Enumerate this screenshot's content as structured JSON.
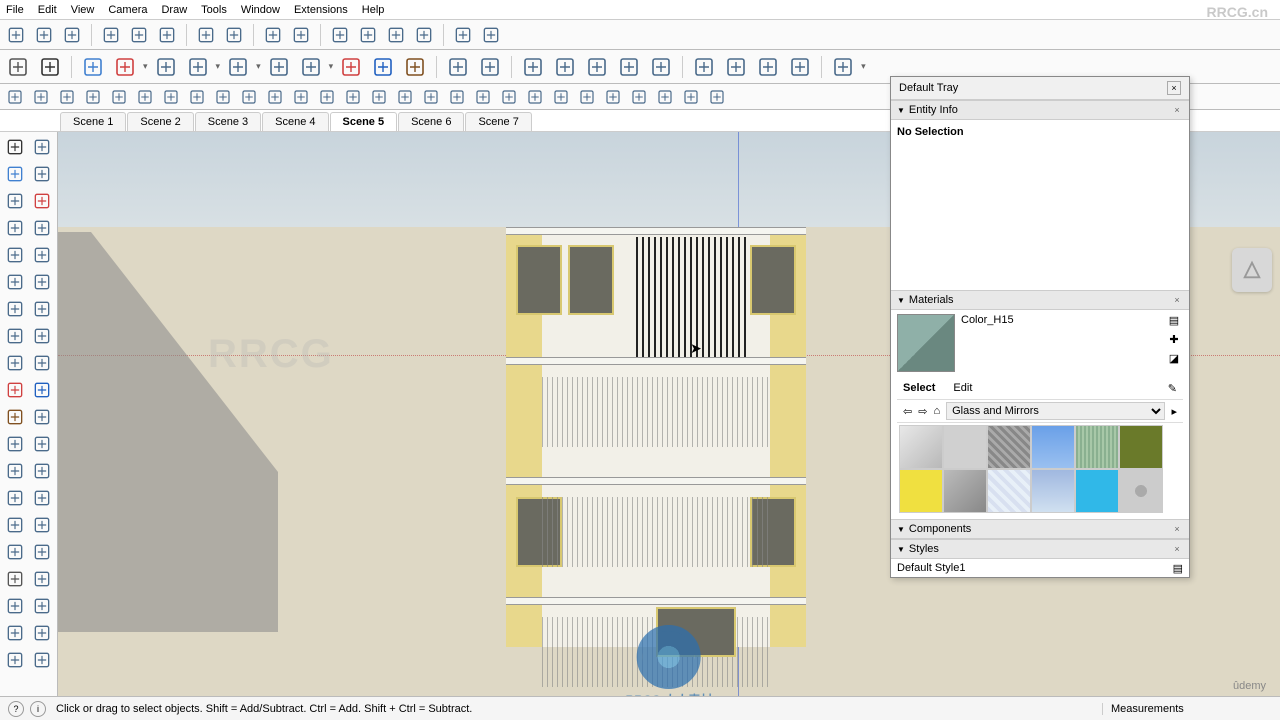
{
  "watermarks": {
    "top_right": "RRCG.cn",
    "center": "RRCG",
    "bottom_label": "RRCG 人人素材"
  },
  "menubar": [
    "File",
    "Edit",
    "View",
    "Camera",
    "Draw",
    "Tools",
    "Window",
    "Extensions",
    "Help"
  ],
  "scenes": {
    "tabs": [
      "Scene 1",
      "Scene 2",
      "Scene 3",
      "Scene 4",
      "Scene 5",
      "Scene 6",
      "Scene 7"
    ],
    "active": 4
  },
  "tray": {
    "title": "Default Tray",
    "entity": {
      "title": "Entity Info",
      "status": "No Selection"
    },
    "materials": {
      "title": "Materials",
      "current": "Color_H15",
      "tabs": [
        "Select",
        "Edit"
      ],
      "library": "Glass and Mirrors",
      "swatches": [
        "linear-gradient(135deg,#e8e8e8,#b8b8b8)",
        "#d0d0d0",
        "repeating-linear-gradient(45deg,#888 0 3px,#aaa 3px 6px)",
        "linear-gradient(#6aa0e8,#9ac0f0)",
        "repeating-linear-gradient(90deg,#8ab090 0 2px,#a8c8a8 2px 4px)",
        "#6a7a2a",
        "#f0e040",
        "linear-gradient(135deg,#bbb,#888)",
        "repeating-linear-gradient(45deg,#d8e0f0 0 4px,#e8f0f8 4px 8px)",
        "linear-gradient(#a0b8e0,#d0e0f0)",
        "#30b8e8",
        "radial-gradient(#aaa 20%, #ccc 20%)"
      ]
    },
    "components": {
      "title": "Components"
    },
    "styles": {
      "title": "Styles",
      "current": "Default Style1"
    }
  },
  "statusbar": {
    "hint": "Click or drag to select objects. Shift = Add/Subtract. Ctrl = Add. Shift + Ctrl = Subtract.",
    "measurements_label": "Measurements"
  },
  "udemy": "ûdemy",
  "toolbar_main_icons": [
    "new",
    "open",
    "save",
    "sep",
    "cut",
    "copy",
    "paste",
    "sep",
    "undo",
    "redo",
    "sep",
    "print",
    "model",
    "sep",
    "comp-a",
    "comp-b",
    "comp-c",
    "comp-d",
    "sep",
    "house",
    "rect"
  ],
  "toolbar_sec_icons": [
    "zoom",
    "select",
    "sep",
    "eraser",
    "pencil",
    "drop",
    "line",
    "rect",
    "drop",
    "arc",
    "drop",
    "pushpull",
    "offset",
    "drop",
    "move",
    "rotate",
    "scale",
    "sep",
    "tape",
    "protractor",
    "sep",
    "axes",
    "orbit",
    "pan",
    "zoom2",
    "extents",
    "sep",
    "sandbox1",
    "sandbox2",
    "sandbox3",
    "sandbox4",
    "sep",
    "user",
    "drop"
  ],
  "toolbar_third_icons": [
    "a1",
    "a2",
    "a3",
    "a4",
    "a5",
    "a6",
    "a7",
    "a8",
    "a9",
    "a10",
    "a11",
    "a12",
    "a13",
    "a14",
    "a15",
    "a16",
    "a17",
    "a18",
    "a19",
    "a20",
    "a21",
    "a22",
    "a23",
    "a24",
    "a25",
    "a26",
    "a27",
    "a28"
  ],
  "left_tool_icons": [
    "select",
    "lasso",
    "eraser",
    "eraser2",
    "paint",
    "pencil",
    "line",
    "freehand",
    "rect",
    "poly",
    "circle",
    "arc",
    "arc2",
    "pie",
    "pushpull",
    "followme",
    "offset",
    "offset2",
    "move",
    "rotate",
    "scale",
    "scale2",
    "tape",
    "tape2",
    "axes",
    "text",
    "protractor",
    "dim",
    "section",
    "section2",
    "orbit",
    "pan",
    "zoom",
    "extents",
    "walk",
    "look",
    "pos",
    "sand1",
    "sand2",
    "sand3"
  ],
  "viewport": {
    "sky_color": "#c8d4dc",
    "ground_color": "#ded8c5",
    "building": {
      "column_color": "#e8d88c",
      "wall_color": "#f2f0e8",
      "window_color": "#6a6a60",
      "grill_color": "#222222"
    }
  }
}
